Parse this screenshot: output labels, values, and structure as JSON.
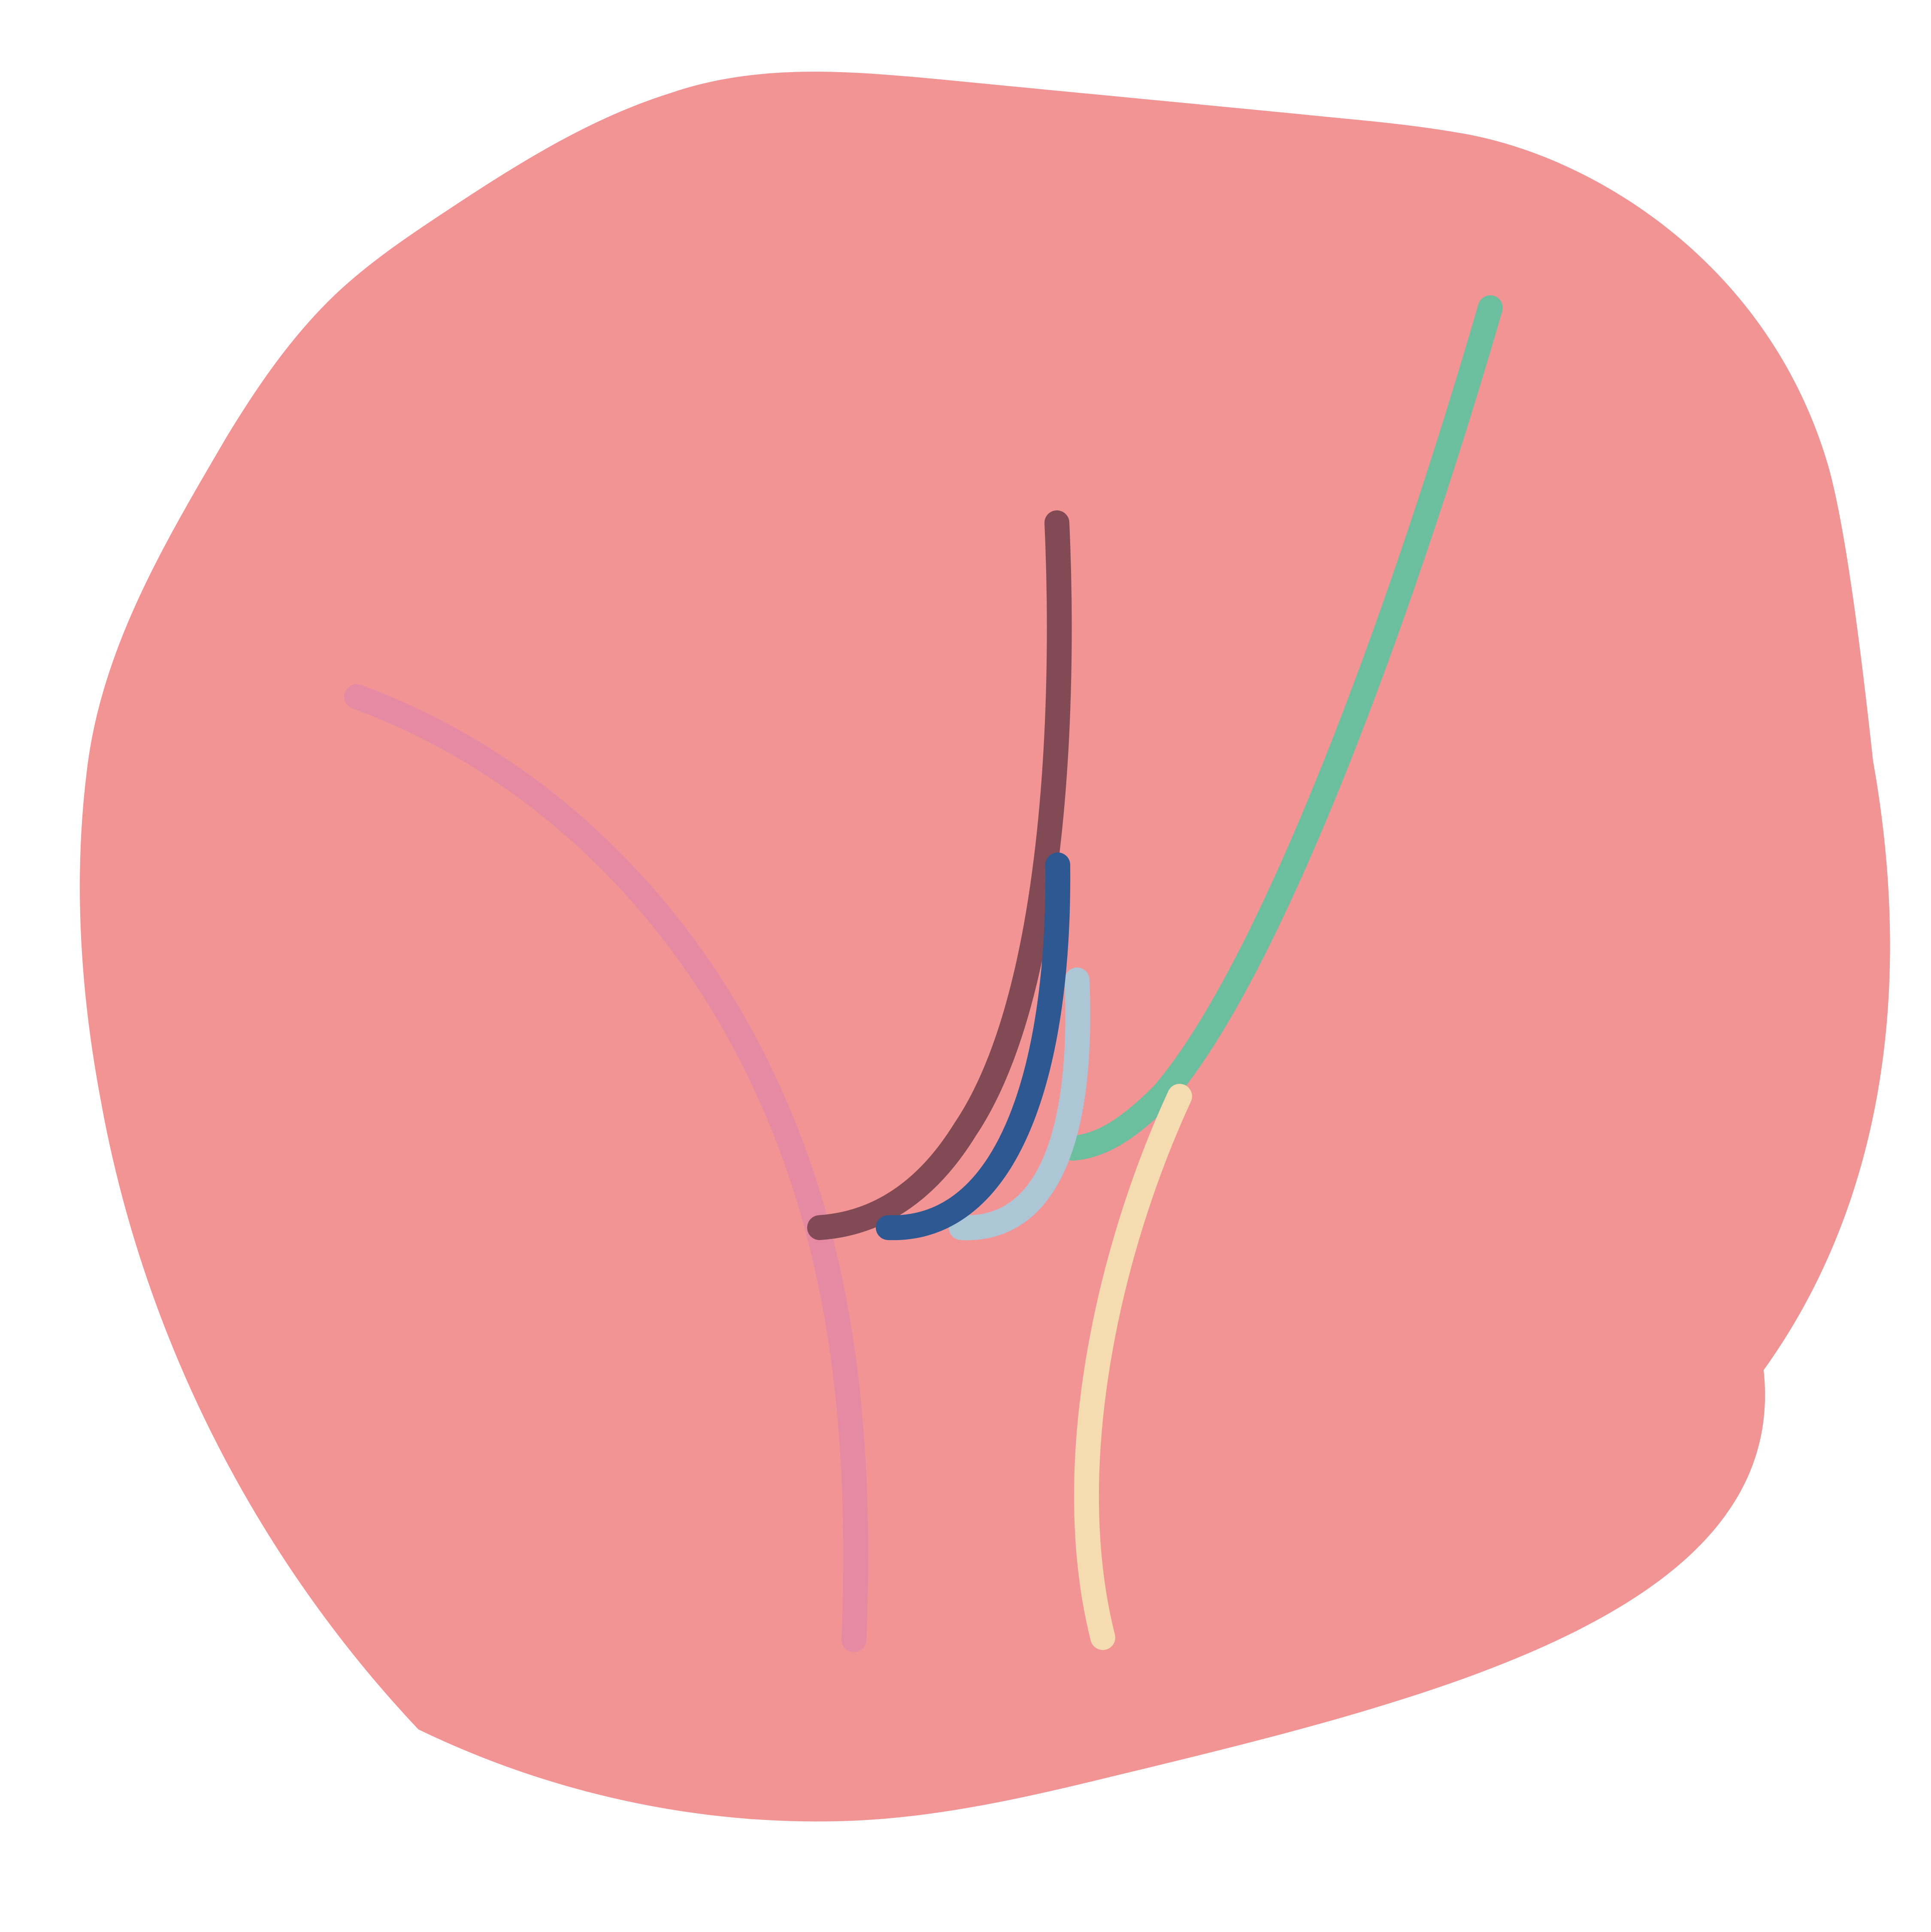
{
  "colors": {
    "background": "#ffffff",
    "blob": "#f39494",
    "strokes": {
      "pink": "#e68aa4",
      "maroon": "#824a55",
      "green": "#6bbf9f",
      "navy": "#2e5891",
      "light_blue": "#adc6d6",
      "cream": "#f5dbb0"
    }
  },
  "elements": {
    "blob": "organic-blob-shape",
    "strokes": [
      "pink-curve",
      "maroon-curve",
      "green-curve",
      "light-blue-curve",
      "navy-curve",
      "cream-curve"
    ]
  }
}
